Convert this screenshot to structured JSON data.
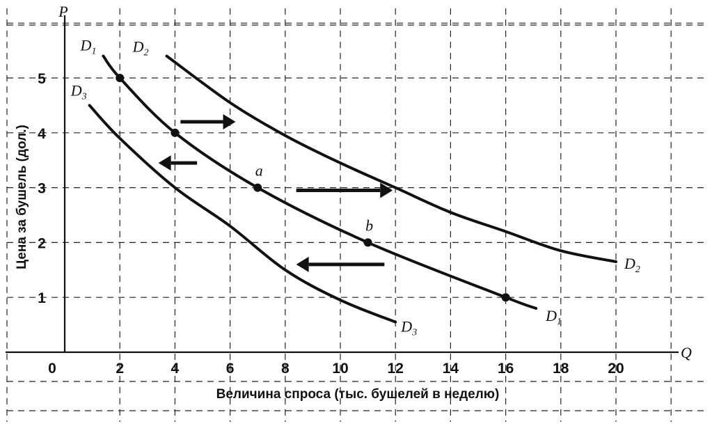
{
  "chart_data": {
    "type": "line",
    "xlabel": "Величина спроса  (тыс. бушелей в неделю)",
    "ylabel": "Цена за бушель  (дол.)",
    "x_axis_symbol": "Q",
    "y_axis_symbol": "P",
    "origin_label": "0",
    "x_ticks": [
      2,
      4,
      6,
      8,
      10,
      12,
      14,
      16,
      18,
      20
    ],
    "y_ticks": [
      1,
      2,
      3,
      4,
      5
    ],
    "xlim": [
      0,
      22
    ],
    "ylim": [
      0,
      6
    ],
    "grid": true,
    "series": [
      {
        "name": "D1",
        "label_main": "D",
        "label_sub": "1",
        "x": [
          1.4,
          2,
          4,
          7,
          11,
          16,
          17.1
        ],
        "y": [
          5.4,
          5,
          4,
          3,
          2,
          1,
          0.8
        ]
      },
      {
        "name": "D2",
        "label_main": "D",
        "label_sub": "2",
        "x": [
          3.7,
          6,
          8,
          10,
          12,
          14,
          16,
          18,
          20
        ],
        "y": [
          5.4,
          4.55,
          3.95,
          3.45,
          3.0,
          2.55,
          2.2,
          1.85,
          1.65
        ]
      },
      {
        "name": "D3",
        "label_main": "D",
        "label_sub": "3",
        "x": [
          0.9,
          2,
          4,
          6,
          8,
          10,
          12
        ],
        "y": [
          4.5,
          3.9,
          3.0,
          2.3,
          1.5,
          0.95,
          0.55
        ]
      }
    ],
    "points": [
      {
        "x": 2,
        "y": 5,
        "label": ""
      },
      {
        "x": 4,
        "y": 4,
        "label": ""
      },
      {
        "x": 7,
        "y": 3,
        "label": "a"
      },
      {
        "x": 11,
        "y": 2,
        "label": "b"
      },
      {
        "x": 16,
        "y": 1,
        "label": ""
      }
    ],
    "arrows": [
      {
        "from": [
          4.2,
          4.2
        ],
        "to": [
          6.2,
          4.2
        ],
        "direction": "right"
      },
      {
        "from": [
          8.4,
          2.95
        ],
        "to": [
          11.9,
          2.95
        ],
        "direction": "right"
      },
      {
        "from": [
          4.8,
          3.45
        ],
        "to": [
          3.4,
          3.45
        ],
        "direction": "left"
      },
      {
        "from": [
          11.6,
          1.6
        ],
        "to": [
          8.4,
          1.6
        ],
        "direction": "left"
      }
    ]
  }
}
